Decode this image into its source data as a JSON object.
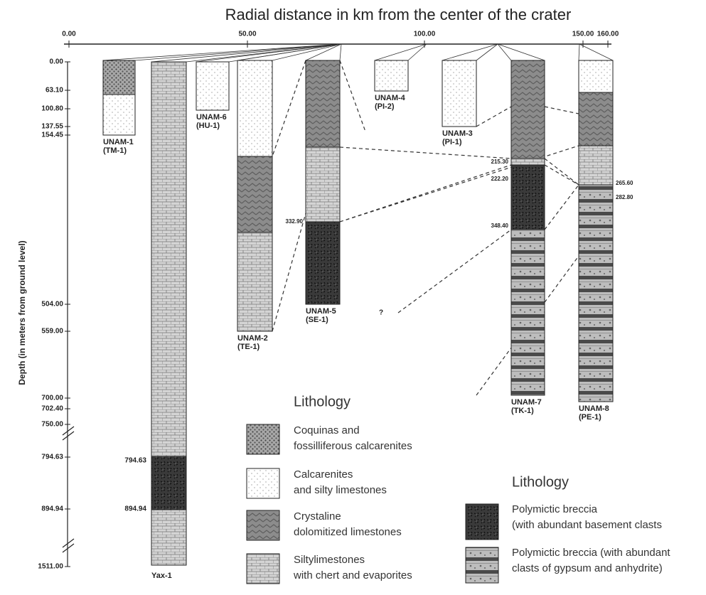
{
  "title": "Radial distance in km from the center of the crater",
  "top_axis": {
    "labels": [
      "0.00",
      "50.00",
      "100.00",
      "150.00",
      "160.00"
    ]
  },
  "depth_axis": {
    "title": "Depth (in meters from ground level)",
    "labels": [
      "0.00",
      "63.10",
      "100.80",
      "137.55",
      "154.45",
      "504.00",
      "559.00",
      "700.00",
      "702.40",
      "750.00",
      "794.63",
      "894.94",
      "1511.00"
    ]
  },
  "wells": [
    {
      "name": "UNAM-1",
      "code": "(TM-1)"
    },
    {
      "name": "Yax-1",
      "marks": [
        "794.63",
        "894.94"
      ]
    },
    {
      "name": "UNAM-6",
      "code": "(HU-1)"
    },
    {
      "name": "UNAM-2",
      "code": "(TE-1)"
    },
    {
      "name": "UNAM-5",
      "code": "(SE-1)",
      "marks": [
        "332.90"
      ]
    },
    {
      "name": "UNAM-4",
      "code": "(PI-2)"
    },
    {
      "name": "UNAM-3",
      "code": "(PI-1)"
    },
    {
      "name": "UNAM-7",
      "code": "(TK-1)",
      "marks": [
        "215.30",
        "222.20",
        "348.40"
      ]
    },
    {
      "name": "UNAM-8",
      "code": "(PE-1)",
      "marks": [
        "265.60",
        "282.80"
      ]
    }
  ],
  "unknown_mark": "?",
  "legend_1": {
    "title": "Lithology",
    "items": [
      [
        "Coquinas and",
        "fossilliferous calcarenites"
      ],
      [
        "Calcarenites",
        "and silty limestones"
      ],
      [
        "Crystaline",
        "dolomitized limestones"
      ],
      [
        "Siltylimestones",
        "with chert and evaporites"
      ]
    ]
  },
  "legend_2": {
    "title": "Lithology",
    "items": [
      [
        "Polymictic breccia",
        "(with abundant basement clasts"
      ],
      [
        "Polymictic breccia (with abundant",
        "clasts of gypsum and anhydrite)"
      ]
    ]
  }
}
